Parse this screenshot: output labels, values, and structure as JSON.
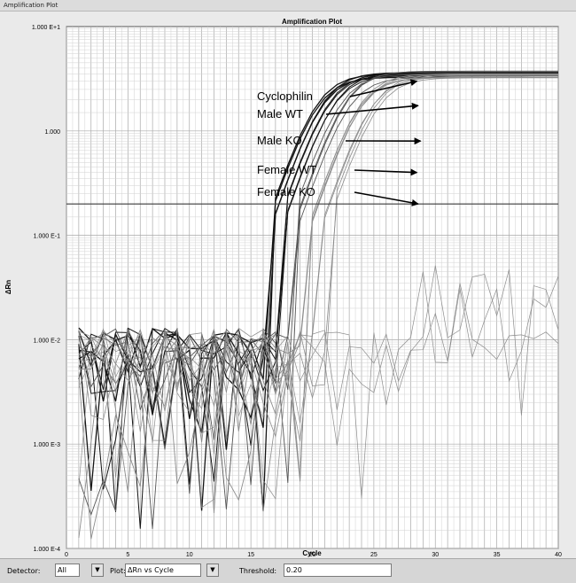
{
  "window": {
    "title": "Amplification Plot"
  },
  "controls": {
    "detector_label": "Detector:",
    "detector_value": "All",
    "plot_label": "Plot:",
    "plot_value": "ΔRn vs Cycle",
    "threshold_label": "Threshold:",
    "threshold_value": "0.20",
    "dropdown_glyph": "▼"
  },
  "chart_data": {
    "type": "line",
    "title": "Amplification Plot",
    "xlabel": "Cycle",
    "ylabel": "ΔRn",
    "x_ticks": [
      "0",
      "5",
      "10",
      "15",
      "20",
      "25",
      "30",
      "35",
      "40"
    ],
    "y_ticks": [
      "1.000 E-4",
      "1.000 E-3",
      "1.000 E-2",
      "1.000 E-1",
      "1.000",
      "1.000 E+1"
    ],
    "xlim": [
      0,
      40
    ],
    "ylim": [
      0.0001,
      10
    ],
    "y_scale": "log",
    "grid": true,
    "threshold": 0.2,
    "annotations": [
      {
        "text": "Cyclophilin",
        "arrow_to": {
          "x": 28.5,
          "y": 3.0
        }
      },
      {
        "text": "Male WT",
        "arrow_to": {
          "x": 28.6,
          "y": 1.75
        }
      },
      {
        "text": "Male KO",
        "arrow_to": {
          "x": 28.8,
          "y": 0.8
        }
      },
      {
        "text": "Female WT",
        "arrow_to": {
          "x": 28.5,
          "y": 0.4
        }
      },
      {
        "text": "Female KO",
        "arrow_to": {
          "x": 28.6,
          "y": 0.2
        }
      }
    ],
    "series_colors": {
      "dark": "#141414",
      "medium": "#555555",
      "light": "#8c8c8c",
      "grid_major": "#a9a9a9",
      "grid_minor": "#d2d2d2",
      "background": "#ffffff"
    }
  }
}
